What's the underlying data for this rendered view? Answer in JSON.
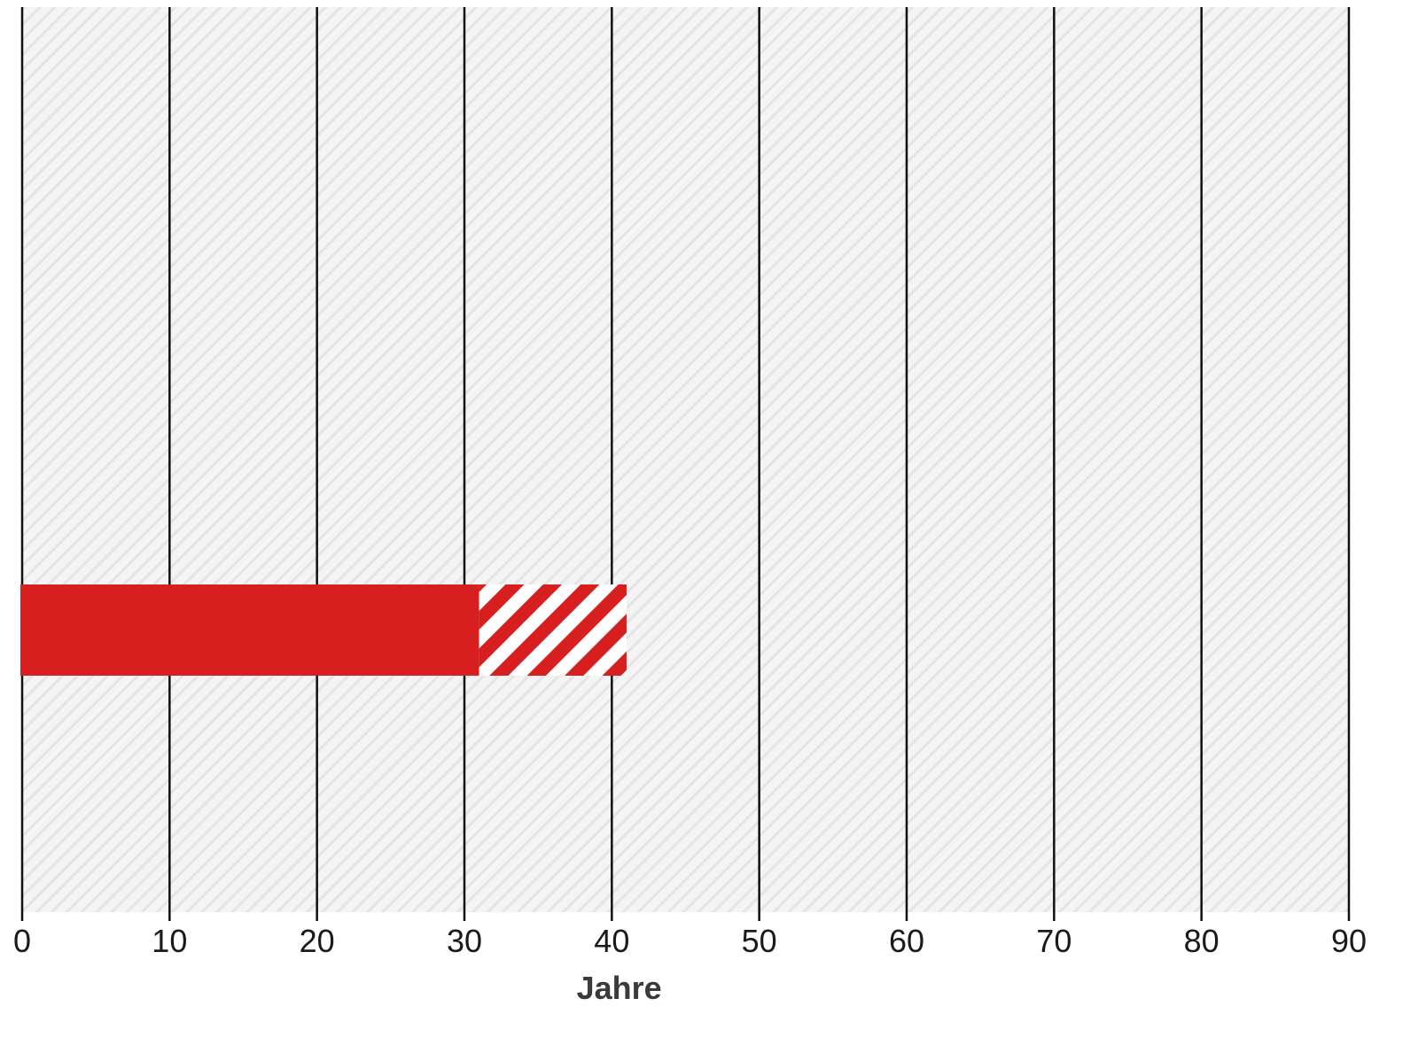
{
  "chart_data": {
    "type": "bar",
    "orientation": "horizontal",
    "xlabel": "Jahre",
    "xlim": [
      0,
      90
    ],
    "xticks": [
      0,
      10,
      20,
      30,
      40,
      50,
      60,
      70,
      80,
      90
    ],
    "grid": true,
    "background": "hatched light grey",
    "bars": [
      {
        "solid_value": 31,
        "hatched_range": [
          31,
          41
        ]
      }
    ]
  },
  "colors": {
    "bar": "#d71f1f",
    "grid": "#111111",
    "background_base": "#f4f4f4",
    "background_stripe": "#e4e4e4"
  }
}
